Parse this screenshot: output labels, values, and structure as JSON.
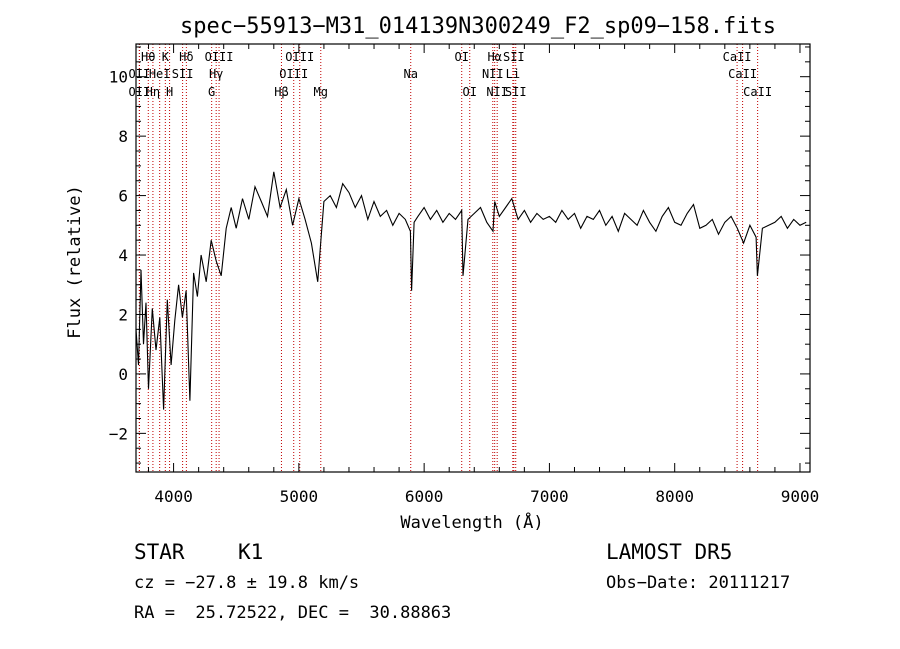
{
  "chart_data": {
    "type": "line",
    "title": "spec−55913−M31_014139N300249_F2_sp09−158.fits",
    "xlabel": "Wavelength (Å)",
    "ylabel": "Flux (relative)",
    "xlim": [
      3700,
      9080
    ],
    "ylim": [
      -3.3,
      11.1
    ],
    "xticks": [
      4000,
      5000,
      6000,
      7000,
      8000,
      9000
    ],
    "yticks": [
      -2,
      0,
      2,
      4,
      6,
      8,
      10
    ],
    "grid": false,
    "legend": "none",
    "series": [
      {
        "x": [
          3700,
          3720,
          3740,
          3760,
          3780,
          3800,
          3830,
          3860,
          3890,
          3920,
          3950,
          3980,
          4010,
          4040,
          4070,
          4100,
          4130,
          4160,
          4190,
          4220,
          4260,
          4300,
          4340,
          4380,
          4420,
          4460,
          4500,
          4550,
          4600,
          4650,
          4700,
          4750,
          4800,
          4850,
          4900,
          4950,
          5000,
          5050,
          5100,
          5150,
          5200,
          5250,
          5300,
          5350,
          5400,
          5450,
          5500,
          5550,
          5600,
          5650,
          5700,
          5750,
          5800,
          5850,
          5890,
          5900,
          5920,
          5950,
          6000,
          6050,
          6100,
          6150,
          6200,
          6250,
          6300,
          6310,
          6350,
          6400,
          6450,
          6500,
          6550,
          6563,
          6600,
          6650,
          6700,
          6750,
          6800,
          6850,
          6900,
          6950,
          7000,
          7050,
          7100,
          7150,
          7200,
          7250,
          7300,
          7350,
          7400,
          7450,
          7500,
          7550,
          7600,
          7650,
          7700,
          7750,
          7800,
          7850,
          7900,
          7950,
          8000,
          8050,
          8100,
          8150,
          8200,
          8250,
          8300,
          8350,
          8400,
          8450,
          8500,
          8550,
          8600,
          8650,
          8660,
          8700,
          8750,
          8800,
          8850,
          8900,
          8950,
          9000,
          9050
        ],
        "y": [
          1.5,
          0.3,
          3.5,
          1.0,
          2.4,
          -0.5,
          2.2,
          0.8,
          1.9,
          -1.2,
          2.5,
          0.3,
          1.8,
          3.0,
          1.9,
          2.8,
          -0.9,
          3.4,
          2.6,
          4.0,
          3.1,
          4.5,
          3.8,
          3.3,
          4.9,
          5.6,
          4.9,
          5.9,
          5.2,
          6.3,
          5.8,
          5.3,
          6.8,
          5.6,
          6.2,
          5.0,
          5.9,
          5.2,
          4.4,
          3.1,
          5.8,
          6.0,
          5.6,
          6.4,
          6.1,
          5.6,
          6.0,
          5.2,
          5.8,
          5.3,
          5.5,
          5.0,
          5.4,
          5.2,
          4.8,
          2.8,
          5.1,
          5.3,
          5.6,
          5.2,
          5.5,
          5.1,
          5.4,
          5.2,
          5.5,
          3.3,
          5.2,
          5.4,
          5.6,
          5.1,
          4.8,
          5.8,
          5.3,
          5.6,
          5.9,
          5.2,
          5.5,
          5.1,
          5.4,
          5.2,
          5.3,
          5.1,
          5.5,
          5.2,
          5.4,
          4.9,
          5.3,
          5.2,
          5.5,
          5.0,
          5.3,
          4.8,
          5.4,
          5.2,
          5.0,
          5.5,
          5.1,
          4.8,
          5.3,
          5.6,
          5.1,
          5.0,
          5.4,
          5.7,
          4.9,
          5.0,
          5.2,
          4.7,
          5.1,
          5.3,
          4.9,
          4.4,
          5.0,
          4.6,
          3.3,
          4.9,
          5.0,
          5.1,
          5.3,
          4.9,
          5.2,
          5.0,
          5.1
        ]
      }
    ],
    "lines": [
      {
        "row": 1,
        "text": "Hθ",
        "x": 3798
      },
      {
        "row": 1,
        "text": "K",
        "x": 3934
      },
      {
        "row": 1,
        "text": "Hδ",
        "x": 4102
      },
      {
        "row": 1,
        "text": "OIII",
        "x": 4363
      },
      {
        "row": 1,
        "text": "OIII",
        "x": 5007
      },
      {
        "row": 1,
        "text": "OI",
        "x": 6300
      },
      {
        "row": 1,
        "text": "Hα",
        "x": 6563
      },
      {
        "row": 1,
        "text": "SII",
        "x": 6716
      },
      {
        "row": 1,
        "text": "CaII",
        "x": 8498
      },
      {
        "row": 2,
        "text": "OII",
        "x": 3727
      },
      {
        "row": 2,
        "text": "HeI",
        "x": 3889
      },
      {
        "row": 2,
        "text": "SII",
        "x": 4072
      },
      {
        "row": 2,
        "text": "Hγ",
        "x": 4340
      },
      {
        "row": 2,
        "text": "OIII",
        "x": 4959
      },
      {
        "row": 2,
        "text": "Na",
        "x": 5893
      },
      {
        "row": 2,
        "text": "NII",
        "x": 6548
      },
      {
        "row": 2,
        "text": "Li",
        "x": 6708
      },
      {
        "row": 2,
        "text": "CaII",
        "x": 8542
      },
      {
        "row": 3,
        "text": "OII",
        "x": 3727
      },
      {
        "row": 3,
        "text": "Hη",
        "x": 3835
      },
      {
        "row": 3,
        "text": "H",
        "x": 3968
      },
      {
        "row": 3,
        "text": "G",
        "x": 4304
      },
      {
        "row": 3,
        "text": "Hβ",
        "x": 4861
      },
      {
        "row": 3,
        "text": "Mg",
        "x": 5175
      },
      {
        "row": 3,
        "text": "OI",
        "x": 6364
      },
      {
        "row": 3,
        "text": "NII",
        "x": 6583
      },
      {
        "row": 3,
        "text": "SII",
        "x": 6731
      },
      {
        "row": 3,
        "text": "CaII",
        "x": 8662
      }
    ]
  },
  "info": {
    "class": "STAR",
    "subclass": "K1",
    "survey": "LAMOST DR5",
    "cz": "cz = −27.8 ± 19.8 km/s",
    "obs_date": "Obs−Date: 20111217",
    "radec": "RA =  25.72522, DEC =  30.88863"
  }
}
